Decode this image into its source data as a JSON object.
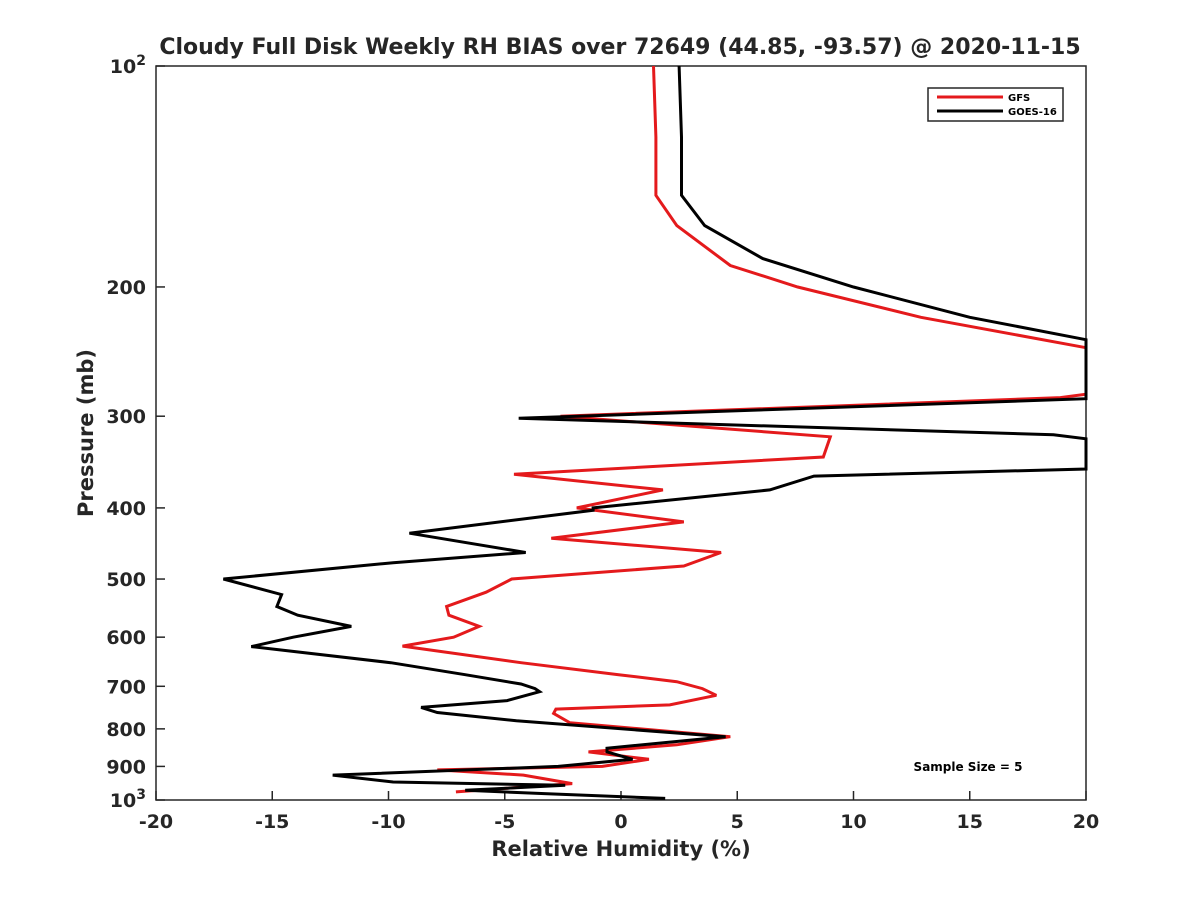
{
  "chart_data": {
    "type": "line",
    "title": "Cloudy Full Disk Weekly RH BIAS over 72649 (44.85, -93.57) @ 2020-11-15",
    "xlabel": "Relative Humidity (%)",
    "ylabel": "Pressure (mb)",
    "xlim": [
      -20,
      20
    ],
    "ylim": [
      100,
      1000
    ],
    "y_scale": "log",
    "y_reversed": true,
    "x_ticks": [
      {
        "value": -20,
        "label": "-20"
      },
      {
        "value": -15,
        "label": "-15"
      },
      {
        "value": -10,
        "label": "-10"
      },
      {
        "value": -5,
        "label": "-5"
      },
      {
        "value": 0,
        "label": "0"
      },
      {
        "value": 5,
        "label": "5"
      },
      {
        "value": 10,
        "label": "10"
      },
      {
        "value": 15,
        "label": "15"
      },
      {
        "value": 20,
        "label": "20"
      }
    ],
    "y_ticks": [
      {
        "value": 100,
        "label": "10",
        "sup": "2"
      },
      {
        "value": 200,
        "label": "200",
        "sup": ""
      },
      {
        "value": 300,
        "label": "300",
        "sup": ""
      },
      {
        "value": 400,
        "label": "400",
        "sup": ""
      },
      {
        "value": 500,
        "label": "500",
        "sup": ""
      },
      {
        "value": 600,
        "label": "600",
        "sup": ""
      },
      {
        "value": 700,
        "label": "700",
        "sup": ""
      },
      {
        "value": 800,
        "label": "800",
        "sup": ""
      },
      {
        "value": 900,
        "label": "900",
        "sup": ""
      },
      {
        "value": 1000,
        "label": "10",
        "sup": "3"
      }
    ],
    "grid": false,
    "legend_position": "top-right",
    "annotation": "Sample Size = 5",
    "series": [
      {
        "name": "GFS",
        "color": "#e41a1c",
        "points": [
          [
            1.4,
            100
          ],
          [
            1.5,
            125
          ],
          [
            1.5,
            150
          ],
          [
            2.4,
            165
          ],
          [
            4.7,
            187
          ],
          [
            7.6,
            200
          ],
          [
            12.9,
            220
          ],
          [
            20,
            242
          ],
          [
            20,
            280
          ],
          [
            18.9,
            283
          ],
          [
            -2.6,
            300
          ],
          [
            9.0,
            320
          ],
          [
            8.7,
            341
          ],
          [
            -4.6,
            360
          ],
          [
            1.8,
            378
          ],
          [
            -1.9,
            400
          ],
          [
            2.7,
            418
          ],
          [
            -3.0,
            440
          ],
          [
            4.3,
            460
          ],
          [
            2.7,
            480
          ],
          [
            -4.7,
            500
          ],
          [
            -5.8,
            521
          ],
          [
            -7.5,
            545
          ],
          [
            -7.4,
            560
          ],
          [
            -6.1,
            580
          ],
          [
            -7.2,
            600
          ],
          [
            -9.4,
            617
          ],
          [
            -4.3,
            650
          ],
          [
            -0.1,
            675
          ],
          [
            2.4,
            690
          ],
          [
            3.5,
            705
          ],
          [
            4.1,
            720
          ],
          [
            2.1,
            742
          ],
          [
            -2.8,
            752
          ],
          [
            -2.9,
            762
          ],
          [
            -2.2,
            785
          ],
          [
            4.7,
            820
          ],
          [
            2.4,
            841
          ],
          [
            -1.4,
            860
          ],
          [
            1.2,
            880
          ],
          [
            -0.8,
            900
          ],
          [
            -7.9,
            910
          ],
          [
            -4.2,
            925
          ],
          [
            -2.1,
            950
          ],
          [
            -7.1,
            975
          ]
        ]
      },
      {
        "name": "GOES-16",
        "color": "#000000",
        "points": [
          [
            2.5,
            100
          ],
          [
            2.6,
            125
          ],
          [
            2.6,
            150
          ],
          [
            3.6,
            165
          ],
          [
            6.1,
            183
          ],
          [
            10.0,
            200
          ],
          [
            15.0,
            220
          ],
          [
            20,
            236
          ],
          [
            20,
            284
          ],
          [
            -4.4,
            302
          ],
          [
            18.6,
            318
          ],
          [
            20,
            322
          ],
          [
            20,
            354
          ],
          [
            8.3,
            362
          ],
          [
            6.4,
            378
          ],
          [
            -1.2,
            400
          ],
          [
            -1.2,
            403
          ],
          [
            -9.1,
            433
          ],
          [
            -4.1,
            460
          ],
          [
            -9.8,
            475
          ],
          [
            -17.1,
            500
          ],
          [
            -14.6,
            525
          ],
          [
            -14.8,
            545
          ],
          [
            -13.9,
            560
          ],
          [
            -11.6,
            580
          ],
          [
            -14.1,
            600
          ],
          [
            -15.9,
            618
          ],
          [
            -9.9,
            650
          ],
          [
            -6.7,
            675
          ],
          [
            -4.3,
            695
          ],
          [
            -3.7,
            705
          ],
          [
            -3.5,
            712
          ],
          [
            -4.9,
            732
          ],
          [
            -8.6,
            748
          ],
          [
            -7.9,
            760
          ],
          [
            -4.5,
            780
          ],
          [
            4.5,
            820
          ],
          [
            -0.6,
            850
          ],
          [
            -0.6,
            860
          ],
          [
            0.5,
            880
          ],
          [
            -2.7,
            900
          ],
          [
            -12.4,
            925
          ],
          [
            -9.8,
            945
          ],
          [
            -2.4,
            955
          ],
          [
            -6.7,
            970
          ],
          [
            -3.3,
            980
          ],
          [
            1.9,
            995
          ]
        ]
      }
    ]
  }
}
